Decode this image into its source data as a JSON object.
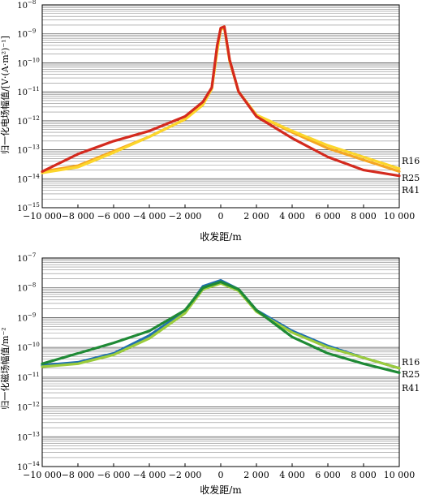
{
  "chart_data": [
    {
      "type": "line",
      "xlabel": "收发距/m",
      "ylabel": "归一化电场幅值/[V·(A·m²)⁻¹]",
      "xlim": [
        -10000,
        10000
      ],
      "ylim_log10": [
        -15,
        -8
      ],
      "yscale": "log",
      "grid": "horizontal minor lines",
      "x_ticks": [
        -10000,
        -8000,
        -6000,
        -4000,
        -2000,
        0,
        2000,
        4000,
        6000,
        8000,
        10000
      ],
      "x_tick_labels": [
        "−10 000",
        "−8 000",
        "−6 000",
        "−4 000",
        "−2 000",
        "0",
        "2 000",
        "4 000",
        "6 000",
        "8 000",
        "10 000"
      ],
      "y_tick_labels": [
        {
          "base": "10",
          "exp": "−8"
        },
        {
          "base": "10",
          "exp": "−9"
        },
        {
          "base": "10",
          "exp": "−10"
        },
        {
          "base": "10",
          "exp": "−11"
        },
        {
          "base": "10",
          "exp": "−12"
        },
        {
          "base": "10",
          "exp": "−13"
        },
        {
          "base": "10",
          "exp": "−14"
        },
        {
          "base": "10",
          "exp": "−15"
        }
      ],
      "series": [
        {
          "name": "R16",
          "color": "#f5a623",
          "x": [
            -10000,
            -8000,
            -6000,
            -4000,
            -2000,
            -1000,
            -500,
            -200,
            0,
            200,
            500,
            1000,
            2000,
            4000,
            6000,
            8000,
            10000
          ],
          "log10y": [
            -13.75,
            -13.55,
            -13.05,
            -12.55,
            -11.95,
            -11.45,
            -10.85,
            -9.5,
            -8.8,
            -8.75,
            -9.9,
            -11.0,
            -11.8,
            -12.4,
            -12.95,
            -13.35,
            -13.75
          ]
        },
        {
          "name": "R25",
          "color": "#fcd62b",
          "x": [
            -10000,
            -8000,
            -6000,
            -4000,
            -2000,
            -1000,
            -500,
            -200,
            0,
            200,
            500,
            1000,
            2000,
            4000,
            6000,
            8000,
            10000
          ],
          "log10y": [
            -13.8,
            -13.6,
            -13.1,
            -12.55,
            -11.95,
            -11.45,
            -10.9,
            -9.6,
            -8.85,
            -8.8,
            -9.95,
            -11.0,
            -11.8,
            -12.35,
            -12.85,
            -13.25,
            -13.65
          ]
        },
        {
          "name": "R41",
          "color": "#d42a1e",
          "x": [
            -10000,
            -8000,
            -6000,
            -4000,
            -2000,
            -1000,
            -500,
            -200,
            0,
            200,
            500,
            1000,
            2000,
            4000,
            6000,
            8000,
            10000
          ],
          "log10y": [
            -13.75,
            -13.15,
            -12.7,
            -12.35,
            -11.85,
            -11.35,
            -10.85,
            -9.4,
            -8.8,
            -8.75,
            -9.9,
            -11.0,
            -11.85,
            -12.6,
            -13.25,
            -13.7,
            -13.9
          ]
        }
      ]
    },
    {
      "type": "line",
      "xlabel": "收发距/m",
      "ylabel": "归一化磁场幅值/m⁻²",
      "xlim": [
        -10000,
        10000
      ],
      "ylim_log10": [
        -14,
        -7
      ],
      "yscale": "log",
      "grid": "horizontal minor lines",
      "x_ticks": [
        -10000,
        -8000,
        -6000,
        -4000,
        -2000,
        0,
        2000,
        4000,
        6000,
        8000,
        10000
      ],
      "x_tick_labels": [
        "−10 000",
        "−8 000",
        "−6 000",
        "−4 000",
        "−2 000",
        "0",
        "2 000",
        "4 000",
        "6 000",
        "8 000",
        "10 000"
      ],
      "y_tick_labels": [
        {
          "base": "10",
          "exp": "−7"
        },
        {
          "base": "10",
          "exp": "−8"
        },
        {
          "base": "10",
          "exp": "−9"
        },
        {
          "base": "10",
          "exp": "−10"
        },
        {
          "base": "10",
          "exp": "−11"
        },
        {
          "base": "10",
          "exp": "−12"
        },
        {
          "base": "10",
          "exp": "−13"
        },
        {
          "base": "10",
          "exp": "−14"
        }
      ],
      "series": [
        {
          "name": "R16",
          "color": "#1f6fb0",
          "x": [
            -10000,
            -8000,
            -6000,
            -4000,
            -2000,
            -1000,
            0,
            1000,
            2000,
            4000,
            6000,
            8000,
            10000
          ],
          "log10y": [
            -10.6,
            -10.5,
            -10.2,
            -9.6,
            -8.8,
            -7.95,
            -7.75,
            -8.05,
            -8.75,
            -9.45,
            -9.95,
            -10.35,
            -10.7
          ]
        },
        {
          "name": "R25",
          "color": "#9ccc3c",
          "x": [
            -10000,
            -8000,
            -6000,
            -4000,
            -2000,
            -1000,
            0,
            1000,
            2000,
            4000,
            6000,
            8000,
            10000
          ],
          "log10y": [
            -10.65,
            -10.55,
            -10.25,
            -9.7,
            -8.85,
            -8.05,
            -7.85,
            -8.1,
            -8.8,
            -9.5,
            -10.0,
            -10.35,
            -10.7
          ]
        },
        {
          "name": "R41",
          "color": "#1e8a35",
          "x": [
            -10000,
            -8000,
            -6000,
            -4000,
            -2000,
            -1000,
            0,
            1000,
            2000,
            4000,
            6000,
            8000,
            10000
          ],
          "log10y": [
            -10.55,
            -10.2,
            -9.85,
            -9.45,
            -8.75,
            -8.0,
            -7.8,
            -8.05,
            -8.75,
            -9.65,
            -10.2,
            -10.55,
            -10.85
          ]
        }
      ]
    }
  ]
}
